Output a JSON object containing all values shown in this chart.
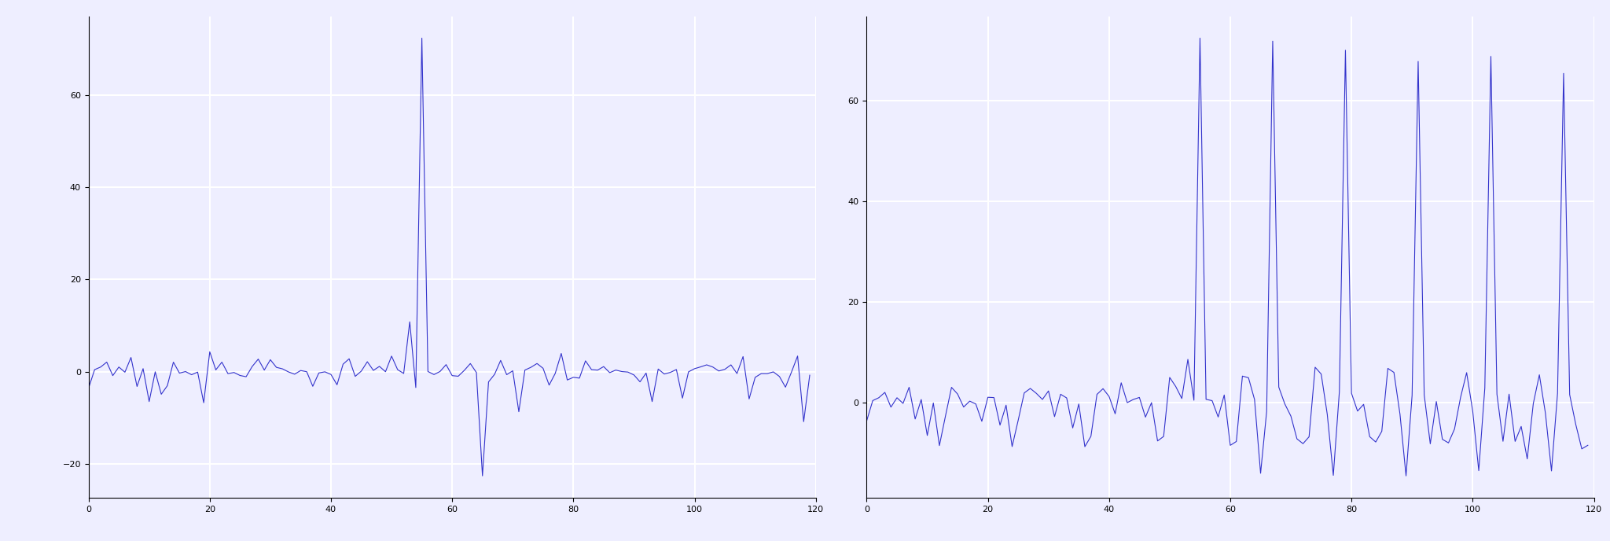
{
  "seed": 0,
  "n": 120,
  "season": 12,
  "line_color": "#3333CC",
  "line_width": 0.8,
  "bg_color": "#eeeeff",
  "grid_color": "white",
  "figsize": [
    20.48,
    6.88
  ],
  "dpi": 100,
  "left_ylim": [
    -350,
    260
  ],
  "right_ylim": [
    -400,
    280
  ],
  "xticks": [
    0,
    20,
    40,
    60,
    80,
    100,
    120
  ]
}
